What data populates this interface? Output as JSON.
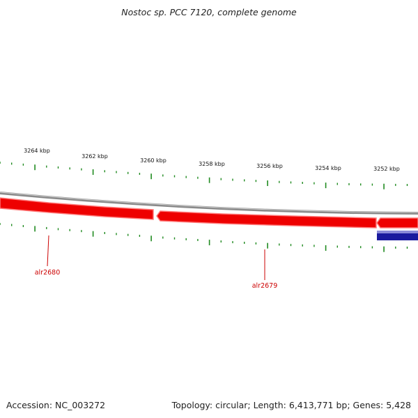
{
  "title": "Nostoc sp. PCC 7120, complete genome",
  "footer": {
    "accession": "Accession: NC_003272",
    "summary": "Topology: circular; Length: 6,413,771 bp; Genes: 5,428"
  },
  "scale": {
    "labels": [
      "3264 kbp",
      "3262 kbp",
      "3260 kbp",
      "3258 kbp",
      "3256 kbp",
      "3254 kbp",
      "3252 kbp"
    ]
  },
  "genes": [
    {
      "name": "alr2680",
      "strand": "forward",
      "color": "#ee0000"
    },
    {
      "name": "alr2679",
      "strand": "forward",
      "color": "#ee0000"
    },
    {
      "name": "",
      "strand": "reverse",
      "color": "#1a1a9e"
    }
  ],
  "colors": {
    "forward_gene": "#ee0000",
    "forward_gene_light": "#ff7a7a",
    "reverse_gene": "#1a1a9e",
    "backbone": "#8a8a8a",
    "ticks": "#1f8a1f",
    "gene_label": "#cc0000"
  }
}
